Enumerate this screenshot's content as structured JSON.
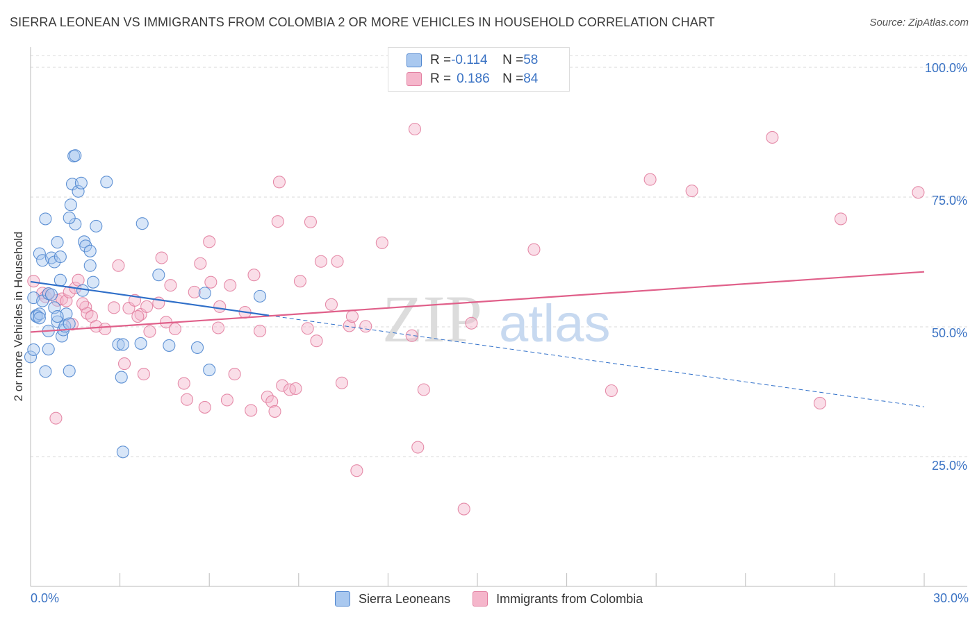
{
  "title": "SIERRA LEONEAN VS IMMIGRANTS FROM COLOMBIA 2 OR MORE VEHICLES IN HOUSEHOLD CORRELATION CHART",
  "source": "Source: ZipAtlas.com",
  "watermark": {
    "zip": "ZIP",
    "atlas": "atlas"
  },
  "legend": {
    "series1": {
      "r_label": "R = ",
      "r_value": "-0.114",
      "n_label": "N = ",
      "n_value": "58"
    },
    "series2": {
      "r_label": "R = ",
      "r_value": "0.186",
      "n_label": "N = ",
      "n_value": "84"
    }
  },
  "bottom_legend": {
    "series1": "Sierra Leoneans",
    "series2": "Immigrants from Colombia"
  },
  "colors": {
    "blue_fill": "#a9c8ef",
    "blue_stroke": "#4f86cf",
    "blue_line": "#2f6fc9",
    "pink_fill": "#f5b6cb",
    "pink_stroke": "#e27fa0",
    "pink_line": "#e0608a",
    "axis_text": "#3b73c4",
    "grid": "#d8d8d8"
  },
  "chart_data": {
    "type": "scatter",
    "title": "SIERRA LEONEAN VS IMMIGRANTS FROM COLOMBIA 2 OR MORE VEHICLES IN HOUSEHOLD CORRELATION CHART",
    "xlabel": "",
    "ylabel": "2 or more Vehicles in Household",
    "xlim": [
      0,
      30
    ],
    "ylim": [
      0,
      105
    ],
    "x_tick_labels": [
      "0.0%",
      "30.0%"
    ],
    "y_ticks": [
      25,
      50,
      75,
      100
    ],
    "y_tick_labels": [
      "25.0%",
      "50.0%",
      "75.0%",
      "100.0%"
    ],
    "series": [
      {
        "name": "Sierra Leoneans",
        "r": -0.114,
        "n": 58,
        "trend": {
          "x0": 0.0,
          "y0": 58.7,
          "x1": 8.0,
          "y1": 52.2,
          "dash_to_x": 30.0,
          "dash_to_y": 34.6
        },
        "points": [
          [
            0.0,
            44.2
          ],
          [
            0.1,
            45.6
          ],
          [
            0.1,
            55.6
          ],
          [
            0.2,
            52.2
          ],
          [
            0.2,
            52.0
          ],
          [
            0.3,
            52.5
          ],
          [
            0.3,
            51.7
          ],
          [
            0.3,
            64.1
          ],
          [
            0.4,
            62.8
          ],
          [
            0.4,
            55.0
          ],
          [
            0.5,
            70.8
          ],
          [
            0.5,
            41.4
          ],
          [
            0.6,
            45.7
          ],
          [
            0.6,
            49.2
          ],
          [
            0.6,
            56.4
          ],
          [
            0.7,
            56.2
          ],
          [
            0.7,
            63.3
          ],
          [
            0.8,
            53.7
          ],
          [
            0.8,
            62.5
          ],
          [
            0.9,
            66.3
          ],
          [
            0.9,
            51.0
          ],
          [
            1.0,
            63.5
          ],
          [
            1.0,
            59.0
          ],
          [
            1.05,
            48.2
          ],
          [
            1.1,
            49.4
          ],
          [
            1.15,
            50.1
          ],
          [
            1.2,
            52.5
          ],
          [
            1.3,
            41.5
          ],
          [
            1.3,
            50.6
          ],
          [
            1.35,
            73.5
          ],
          [
            1.4,
            77.5
          ],
          [
            1.45,
            82.9
          ],
          [
            1.5,
            83.0
          ],
          [
            1.5,
            69.8
          ],
          [
            1.6,
            76.1
          ],
          [
            1.7,
            77.7
          ],
          [
            1.75,
            57.0
          ],
          [
            1.8,
            66.4
          ],
          [
            1.85,
            65.6
          ],
          [
            2.0,
            61.8
          ],
          [
            2.0,
            64.6
          ],
          [
            2.2,
            69.4
          ],
          [
            2.55,
            77.9
          ],
          [
            2.95,
            46.6
          ],
          [
            3.05,
            40.3
          ],
          [
            3.1,
            25.9
          ],
          [
            3.1,
            46.6
          ],
          [
            3.7,
            46.8
          ],
          [
            3.75,
            69.9
          ],
          [
            4.3,
            60.0
          ],
          [
            4.65,
            46.4
          ],
          [
            5.6,
            46.0
          ],
          [
            5.85,
            56.5
          ],
          [
            6.0,
            41.7
          ],
          [
            7.7,
            55.9
          ],
          [
            1.3,
            71.0
          ],
          [
            2.1,
            58.6
          ],
          [
            0.9,
            52.0
          ]
        ]
      },
      {
        "name": "Immigrants from Colombia",
        "r": 0.186,
        "n": 84,
        "trend": {
          "x0": 0.0,
          "y0": 49.0,
          "x1": 30.0,
          "y1": 60.6
        },
        "points": [
          [
            0.1,
            58.8
          ],
          [
            0.4,
            56.5
          ],
          [
            0.5,
            55.8
          ],
          [
            0.6,
            56.4
          ],
          [
            0.85,
            32.4
          ],
          [
            0.9,
            55.1
          ],
          [
            1.05,
            55.4
          ],
          [
            1.2,
            55.0
          ],
          [
            1.3,
            56.7
          ],
          [
            1.4,
            50.5
          ],
          [
            1.5,
            57.5
          ],
          [
            1.6,
            59.0
          ],
          [
            1.85,
            53.8
          ],
          [
            1.9,
            52.6
          ],
          [
            2.05,
            52.0
          ],
          [
            2.2,
            50.1
          ],
          [
            2.5,
            49.6
          ],
          [
            2.8,
            53.7
          ],
          [
            2.95,
            61.8
          ],
          [
            3.15,
            42.9
          ],
          [
            3.3,
            53.6
          ],
          [
            3.5,
            55.1
          ],
          [
            3.7,
            52.4
          ],
          [
            3.9,
            53.9
          ],
          [
            3.8,
            40.9
          ],
          [
            4.0,
            49.1
          ],
          [
            4.3,
            54.6
          ],
          [
            4.4,
            63.3
          ],
          [
            4.55,
            50.9
          ],
          [
            4.7,
            58.0
          ],
          [
            4.85,
            49.6
          ],
          [
            5.15,
            39.1
          ],
          [
            5.25,
            36.0
          ],
          [
            5.5,
            56.7
          ],
          [
            5.7,
            62.2
          ],
          [
            5.85,
            34.5
          ],
          [
            6.0,
            66.4
          ],
          [
            6.05,
            58.6
          ],
          [
            6.3,
            49.8
          ],
          [
            6.35,
            53.9
          ],
          [
            6.6,
            35.9
          ],
          [
            6.7,
            58.0
          ],
          [
            6.85,
            40.9
          ],
          [
            7.2,
            52.8
          ],
          [
            7.4,
            33.9
          ],
          [
            7.5,
            60.0
          ],
          [
            7.7,
            49.2
          ],
          [
            7.95,
            36.5
          ],
          [
            8.1,
            35.6
          ],
          [
            8.2,
            33.7
          ],
          [
            8.3,
            70.3
          ],
          [
            8.35,
            77.9
          ],
          [
            8.45,
            38.7
          ],
          [
            8.7,
            37.9
          ],
          [
            8.9,
            38.1
          ],
          [
            9.05,
            58.8
          ],
          [
            9.3,
            49.7
          ],
          [
            9.4,
            70.2
          ],
          [
            9.6,
            47.3
          ],
          [
            9.75,
            62.6
          ],
          [
            10.1,
            54.3
          ],
          [
            10.3,
            62.6
          ],
          [
            10.45,
            39.2
          ],
          [
            10.7,
            50.2
          ],
          [
            10.8,
            52.0
          ],
          [
            10.95,
            22.3
          ],
          [
            11.25,
            50.1
          ],
          [
            11.8,
            66.2
          ],
          [
            12.8,
            48.3
          ],
          [
            12.9,
            88.1
          ],
          [
            13.0,
            26.8
          ],
          [
            13.2,
            37.9
          ],
          [
            14.55,
            14.9
          ],
          [
            14.8,
            50.7
          ],
          [
            16.9,
            64.9
          ],
          [
            19.5,
            37.7
          ],
          [
            20.8,
            78.4
          ],
          [
            22.2,
            76.2
          ],
          [
            24.9,
            86.5
          ],
          [
            26.5,
            35.3
          ],
          [
            27.2,
            70.8
          ],
          [
            29.8,
            75.9
          ],
          [
            1.75,
            54.5
          ],
          [
            3.6,
            52.0
          ]
        ]
      }
    ]
  }
}
